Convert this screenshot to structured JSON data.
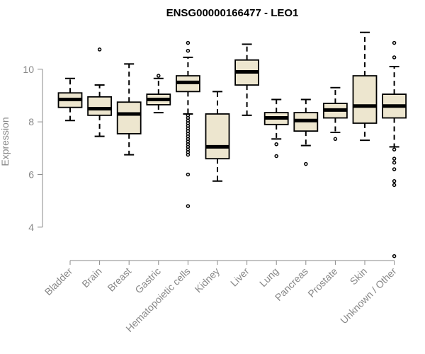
{
  "chart_data": {
    "type": "boxplot",
    "title": "ENSG00000166477 - LEO1",
    "ylabel": "Expression",
    "xlabel": "",
    "ylim": [
      3,
      11.5
    ],
    "yticks": [
      4,
      6,
      8,
      10
    ],
    "box_fill": "#ede6cf",
    "outline_color": "#000000",
    "axis_color": "#888888",
    "categories": [
      "Bladder",
      "Brain",
      "Breast",
      "Gastric",
      "Hematopoietic cells",
      "Kidney",
      "Liver",
      "Lung",
      "Pancreas",
      "Prostate",
      "Skin",
      "Unknown / Other"
    ],
    "boxes": [
      {
        "name": "Bladder",
        "whisker_low": 8.05,
        "q1": 8.55,
        "median": 8.85,
        "q3": 9.1,
        "whisker_high": 9.65,
        "outliers": []
      },
      {
        "name": "Brain",
        "whisker_low": 7.45,
        "q1": 8.25,
        "median": 8.5,
        "q3": 8.95,
        "whisker_high": 9.4,
        "outliers": [
          10.75
        ]
      },
      {
        "name": "Breast",
        "whisker_low": 6.75,
        "q1": 7.55,
        "median": 8.3,
        "q3": 8.75,
        "whisker_high": 10.2,
        "outliers": []
      },
      {
        "name": "Gastric",
        "whisker_low": 8.35,
        "q1": 8.65,
        "median": 8.85,
        "q3": 9.05,
        "whisker_high": 9.65,
        "outliers": [
          9.75
        ]
      },
      {
        "name": "Hematopoietic cells",
        "whisker_low": 8.3,
        "q1": 9.15,
        "median": 9.5,
        "q3": 9.75,
        "whisker_high": 10.45,
        "outliers": [
          11.0,
          10.7,
          8.25,
          8.15,
          8.05,
          7.95,
          7.85,
          7.75,
          7.65,
          7.55,
          7.45,
          7.35,
          7.25,
          7.15,
          7.05,
          6.95,
          6.85,
          6.75,
          6.0,
          4.8
        ]
      },
      {
        "name": "Kidney",
        "whisker_low": 5.75,
        "q1": 6.6,
        "median": 7.05,
        "q3": 8.3,
        "whisker_high": 9.15,
        "outliers": []
      },
      {
        "name": "Liver",
        "whisker_low": 8.25,
        "q1": 9.4,
        "median": 9.9,
        "q3": 10.35,
        "whisker_high": 10.95,
        "outliers": []
      },
      {
        "name": "Lung",
        "whisker_low": 7.35,
        "q1": 7.9,
        "median": 8.15,
        "q3": 8.35,
        "whisker_high": 8.85,
        "outliers": [
          7.15,
          6.7
        ]
      },
      {
        "name": "Pancreas",
        "whisker_low": 7.1,
        "q1": 7.65,
        "median": 8.05,
        "q3": 8.35,
        "whisker_high": 8.85,
        "outliers": [
          6.4
        ]
      },
      {
        "name": "Prostate",
        "whisker_low": 7.6,
        "q1": 8.15,
        "median": 8.45,
        "q3": 8.7,
        "whisker_high": 9.3,
        "outliers": [
          7.35
        ]
      },
      {
        "name": "Skin",
        "whisker_low": 7.3,
        "q1": 7.95,
        "median": 8.6,
        "q3": 9.75,
        "whisker_high": 11.4,
        "outliers": []
      },
      {
        "name": "Unknown / Other",
        "whisker_low": 7.05,
        "q1": 8.15,
        "median": 8.6,
        "q3": 9.05,
        "whisker_high": 10.1,
        "outliers": [
          11.0,
          10.45,
          6.95,
          6.6,
          6.45,
          6.2,
          5.75,
          5.6,
          2.9
        ]
      }
    ]
  }
}
